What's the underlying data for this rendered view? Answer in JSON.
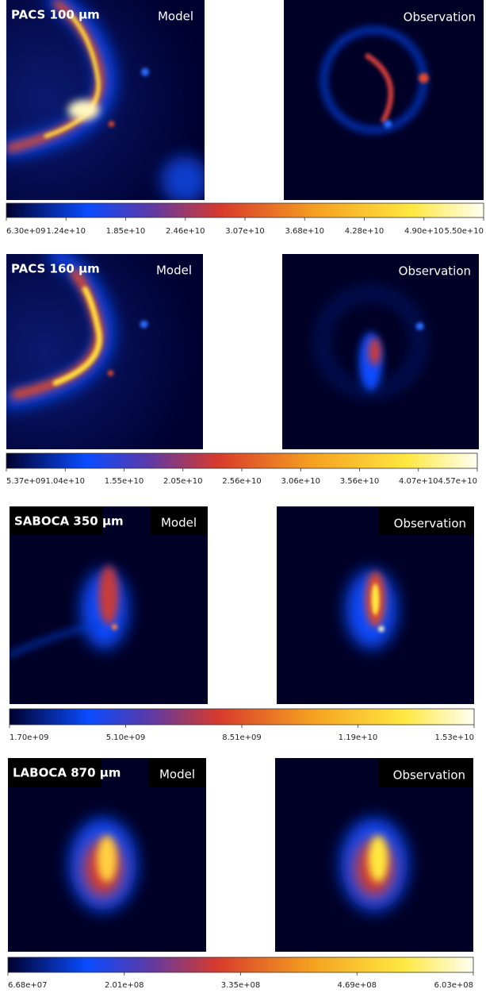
{
  "panels": [
    {
      "band": "PACS 100 μm",
      "model_label": "Model",
      "observation_label": "Observation",
      "colorbar_ticks": [
        "6.30e+09",
        "1.24e+10",
        "1.85e+10",
        "2.46e+10",
        "3.07e+10",
        "3.68e+10",
        "4.28e+10",
        "4.90e+10",
        "5.50e+10"
      ]
    },
    {
      "band": "PACS 160 μm",
      "model_label": "Model",
      "observation_label": "Observation",
      "colorbar_ticks": [
        "5.37e+09",
        "1.04e+10",
        "1.55e+10",
        "2.05e+10",
        "2.56e+10",
        "3.06e+10",
        "3.56e+10",
        "4.07e+10",
        "4.57e+10"
      ]
    },
    {
      "band": "SABOCA 350 μm",
      "model_label": "Model",
      "observation_label": "Observation",
      "colorbar_ticks": [
        "1.70e+09",
        "5.10e+09",
        "8.51e+09",
        "1.19e+10",
        "1.53e+10"
      ]
    },
    {
      "band": "LABOCA 870 μm",
      "model_label": "Model",
      "observation_label": "Observation",
      "colorbar_ticks": [
        "6.68e+07",
        "2.01e+08",
        "3.35e+08",
        "4.69e+08",
        "6.03e+08"
      ]
    }
  ]
}
